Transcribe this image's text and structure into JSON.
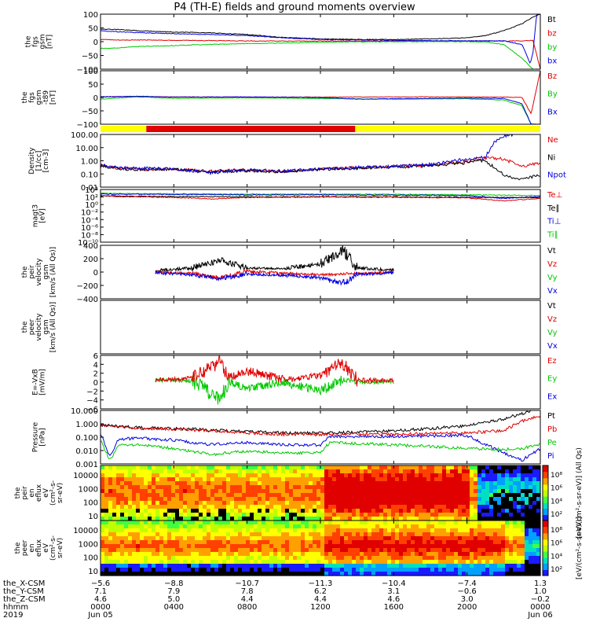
{
  "title": "P4 (TH-E) fields and ground moments overview",
  "colors": {
    "black": "#000000",
    "red": "#e00000",
    "green": "#00c800",
    "blue": "#0000e0",
    "yellow": "#ffff00",
    "bar_red": "#e00000"
  },
  "chart_data": [
    {
      "type": "line",
      "panel": "fgs_gsm",
      "ylabel": [
        "the",
        "fgs",
        "gsm",
        "[nT]"
      ],
      "ylim": [
        -100,
        100
      ],
      "yticks": [
        "100",
        "50",
        "0",
        "−50",
        "−100"
      ],
      "legend": [
        {
          "label": "Bt",
          "color": "#000000"
        },
        {
          "label": "bz",
          "color": "#e00000"
        },
        {
          "label": "by",
          "color": "#00c800"
        },
        {
          "label": "bx",
          "color": "#0000e0"
        }
      ],
      "series": [
        {
          "name": "Bt",
          "x": [
            0,
            1,
            2,
            4,
            6,
            8,
            10,
            12,
            14,
            16,
            18,
            20,
            21,
            22,
            23,
            23.6,
            24
          ],
          "values": [
            46,
            44,
            40,
            35,
            32,
            26,
            15,
            10,
            8,
            8,
            10,
            14,
            22,
            40,
            65,
            90,
            100
          ]
        },
        {
          "name": "bz",
          "x": [
            0,
            1,
            2,
            4,
            6,
            8,
            10,
            12,
            16,
            20,
            22,
            23,
            23.6,
            24
          ],
          "values": [
            8,
            6,
            6,
            5,
            4,
            3,
            2,
            2,
            2,
            2,
            2,
            3,
            5,
            -100
          ]
        },
        {
          "name": "by",
          "x": [
            0,
            1,
            2,
            4,
            6,
            8,
            10,
            12,
            16,
            20,
            21,
            22,
            23,
            23.6,
            24
          ],
          "values": [
            -25,
            -22,
            -18,
            -14,
            -10,
            -7,
            -5,
            -2,
            0,
            0,
            -1,
            -10,
            -60,
            -100,
            -100
          ]
        },
        {
          "name": "bx",
          "x": [
            0,
            1,
            2,
            4,
            6,
            8,
            10,
            12,
            16,
            20,
            22,
            23,
            23.2,
            23.45,
            23.6,
            23.8,
            24
          ],
          "values": [
            40,
            36,
            33,
            29,
            26,
            22,
            14,
            8,
            5,
            3,
            3,
            -10,
            -40,
            -80,
            -40,
            100,
            100
          ]
        }
      ]
    },
    {
      "type": "line",
      "panel": "fgs_gsm_detrended",
      "ylabel": [
        "the",
        "fgs",
        "gsm",
        "-t89",
        "[nT]"
      ],
      "ylim": [
        -130,
        130
      ],
      "yticks": [
        "100",
        "50",
        "0",
        "−50",
        "−100"
      ],
      "legend": [
        {
          "label": "Bz",
          "color": "#e00000"
        },
        {
          "label": "By",
          "color": "#00c800"
        },
        {
          "label": "Bx",
          "color": "#0000e0"
        }
      ],
      "series": [
        {
          "name": "Bz",
          "x": [
            0,
            2,
            4,
            8,
            12,
            16,
            20,
            22,
            23,
            23.5,
            24
          ],
          "values": [
            2,
            5,
            3,
            2,
            2,
            3,
            3,
            2,
            0,
            -80,
            130
          ]
        },
        {
          "name": "By",
          "x": [
            0,
            2,
            4,
            8,
            12,
            16,
            20,
            22,
            23,
            23.5,
            24
          ],
          "values": [
            -8,
            3,
            -4,
            -2,
            -5,
            -8,
            -6,
            -12,
            -40,
            -130,
            -130
          ]
        },
        {
          "name": "Bx",
          "x": [
            0,
            2,
            4,
            8,
            12,
            14,
            16,
            20,
            22,
            23,
            23.5,
            24
          ],
          "values": [
            4,
            6,
            2,
            3,
            0,
            -8,
            -6,
            -3,
            -5,
            -30,
            -130,
            -130
          ]
        }
      ]
    },
    {
      "type": "line",
      "panel": "density",
      "ylabel": [
        "Density",
        "[1/cc]",
        "[cm-3]"
      ],
      "ylim": [
        0.01,
        200
      ],
      "yticks": [
        "100.00",
        "10.00",
        "1.00",
        "0.10",
        "0.01"
      ],
      "legend": [
        {
          "label": "Ne",
          "color": "#e00000"
        },
        {
          "label": "Ni",
          "color": "#000000"
        },
        {
          "label": "Npot",
          "color": "#0000e0"
        }
      ],
      "series": [
        {
          "name": "Ne",
          "x": [
            0,
            1,
            2,
            4,
            6,
            8,
            10,
            12,
            14,
            16,
            18,
            20,
            21,
            22,
            23,
            24
          ],
          "values": [
            0.6,
            0.35,
            0.3,
            0.3,
            0.2,
            0.25,
            0.2,
            0.3,
            0.4,
            0.5,
            0.6,
            1.2,
            2.5,
            2,
            0.5,
            1
          ]
        },
        {
          "name": "Ni",
          "x": [
            0,
            1,
            2,
            4,
            6,
            8,
            10,
            12,
            14,
            16,
            18,
            20,
            21,
            22,
            23,
            24
          ],
          "values": [
            0.5,
            0.3,
            0.28,
            0.28,
            0.18,
            0.22,
            0.18,
            0.28,
            0.35,
            0.45,
            0.55,
            1,
            1.5,
            0.1,
            0.04,
            0.1
          ]
        },
        {
          "name": "Npot",
          "x": [
            0,
            1,
            2,
            4,
            6,
            8,
            10,
            12,
            14,
            16,
            18,
            20,
            21,
            21.5,
            22,
            22.5
          ],
          "values": [
            0.7,
            0.4,
            0.35,
            0.3,
            0.15,
            0.25,
            0.2,
            0.3,
            0.4,
            0.5,
            0.7,
            2,
            3,
            50,
            150,
            200
          ]
        }
      ]
    },
    {
      "type": "line",
      "panel": "magt3",
      "ylabel": [
        "magt3",
        "[eV]"
      ],
      "ylim": [
        1e-10,
        100000
      ],
      "yticks": [
        "10⁴",
        "10²",
        "10⁰",
        "10⁻²",
        "10⁻⁴",
        "10⁻⁶",
        "10⁻⁸",
        "10⁻¹⁰"
      ],
      "legend": [
        {
          "label": "Te⊥",
          "color": "#e00000"
        },
        {
          "label": "Te∥",
          "color": "#000000"
        },
        {
          "label": "Ti⊥",
          "color": "#0000e0"
        },
        {
          "label": "Ti∥",
          "color": "#00c800"
        }
      ],
      "series": [
        {
          "name": "Ti∥",
          "x": [
            0,
            4,
            8,
            12,
            16,
            20,
            24
          ],
          "values": [
            8000,
            6000,
            5000,
            5000,
            4000,
            3000,
            2000
          ]
        },
        {
          "name": "Ti⊥",
          "x": [
            0,
            4,
            8,
            12,
            16,
            20,
            22,
            24
          ],
          "values": [
            5000,
            4000,
            3000,
            3000,
            2500,
            2000,
            300,
            1000
          ]
        },
        {
          "name": "Te∥",
          "x": [
            0,
            4,
            8,
            12,
            16,
            20,
            24
          ],
          "values": [
            1500,
            1000,
            800,
            900,
            800,
            600,
            500
          ]
        },
        {
          "name": "Te⊥",
          "x": [
            0,
            1,
            4,
            6,
            8,
            12,
            16,
            20,
            22,
            24
          ],
          "values": [
            2000,
            900,
            600,
            200,
            500,
            700,
            600,
            400,
            60,
            300
          ]
        }
      ]
    },
    {
      "type": "line",
      "panel": "peir_velocity",
      "ylabel": [
        "the",
        "peir",
        "velocity",
        "gsm",
        "[km/s (All Qs)]"
      ],
      "ylim": [
        -400,
        400
      ],
      "yticks": [
        "400",
        "200",
        "0",
        "−200",
        "−400"
      ],
      "legend": [
        {
          "label": "Vt",
          "color": "#000000"
        },
        {
          "label": "Vz",
          "color": "#e00000"
        },
        {
          "label": "Vy",
          "color": "#00c800"
        },
        {
          "label": "Vx",
          "color": "#0000e0"
        }
      ],
      "series": [
        {
          "name": "Vt",
          "x": [
            3,
            5,
            6.5,
            8,
            10,
            12,
            13.2,
            14,
            16
          ],
          "values": [
            20,
            60,
            180,
            60,
            50,
            120,
            330,
            60,
            30
          ]
        },
        {
          "name": "Vz",
          "x": [
            3,
            5,
            6.5,
            8,
            10,
            12,
            14,
            16
          ],
          "values": [
            0,
            -20,
            -80,
            10,
            -20,
            -40,
            -20,
            0
          ]
        },
        {
          "name": "Vx",
          "x": [
            3,
            5,
            6.5,
            8,
            10,
            12,
            13.2,
            14,
            16
          ],
          "values": [
            -10,
            -40,
            -100,
            -30,
            -50,
            -90,
            -170,
            -40,
            -10
          ]
        }
      ]
    },
    {
      "type": "line",
      "panel": "peer_velocity",
      "ylabel": [
        "the",
        "peer",
        "velocity",
        "gsm",
        "[km/s (All Qs)]"
      ],
      "ylim": [
        -400,
        400
      ],
      "yticks": [],
      "legend": [
        {
          "label": "Vt",
          "color": "#000000"
        },
        {
          "label": "Vz",
          "color": "#e00000"
        },
        {
          "label": "Vy",
          "color": "#00c800"
        },
        {
          "label": "Vx",
          "color": "#0000e0"
        }
      ],
      "series": []
    },
    {
      "type": "line",
      "panel": "efield",
      "ylabel": [
        "E=-VxB",
        "[mV/m]"
      ],
      "ylim": [
        -6,
        6
      ],
      "yticks": [
        "6",
        "4",
        "2",
        "0",
        "−2",
        "−4",
        "−6"
      ],
      "legend": [
        {
          "label": "Ez",
          "color": "#e00000"
        },
        {
          "label": "Ey",
          "color": "#00c800"
        },
        {
          "label": "Ex",
          "color": "#0000e0"
        }
      ],
      "series": [
        {
          "name": "Ey",
          "x": [
            3,
            5,
            6.5,
            7,
            8,
            10,
            12,
            13.2,
            14,
            16
          ],
          "values": [
            0.5,
            0.3,
            -4,
            0.2,
            -1.5,
            0,
            -2,
            0.5,
            0,
            0
          ]
        },
        {
          "name": "Ez",
          "x": [
            3,
            5,
            6.5,
            7,
            8,
            10,
            12,
            13.2,
            14,
            16
          ],
          "values": [
            0.5,
            0.8,
            4.5,
            1,
            2.5,
            0.5,
            1.5,
            4.5,
            0.5,
            0.3
          ]
        }
      ]
    },
    {
      "type": "line",
      "panel": "pressure",
      "ylabel": [
        "Pressure",
        "[nPa]"
      ],
      "ylim": [
        0.0005,
        15
      ],
      "yticks": [
        "10.000",
        "1.000",
        "0.100",
        "0.010",
        "0.001"
      ],
      "legend": [
        {
          "label": "Pt",
          "color": "#000000"
        },
        {
          "label": "Pb",
          "color": "#e00000"
        },
        {
          "label": "Pe",
          "color": "#00c800"
        },
        {
          "label": "Pi",
          "color": "#0000e0"
        }
      ],
      "series": [
        {
          "name": "Pt",
          "x": [
            0,
            1,
            2,
            4,
            6,
            8,
            10,
            12,
            14,
            16,
            18,
            20,
            21,
            22,
            23,
            23.5
          ],
          "values": [
            0.9,
            0.7,
            0.55,
            0.45,
            0.35,
            0.25,
            0.2,
            0.2,
            0.22,
            0.3,
            0.45,
            0.8,
            1.5,
            3,
            8,
            15
          ]
        },
        {
          "name": "Pb",
          "x": [
            0,
            2,
            4,
            6,
            8,
            10,
            12,
            16,
            20,
            22,
            23,
            24
          ],
          "values": [
            0.8,
            0.5,
            0.4,
            0.3,
            0.2,
            0.15,
            0.15,
            0.15,
            0.2,
            0.3,
            2,
            5
          ]
        },
        {
          "name": "Pi",
          "x": [
            0,
            0.5,
            1,
            2,
            4,
            6,
            8,
            10,
            12,
            12.5,
            16,
            20,
            22,
            23,
            24
          ],
          "values": [
            0.2,
            0.002,
            0.06,
            0.07,
            0.05,
            0.02,
            0.03,
            0.02,
            0.02,
            0.1,
            0.1,
            0.12,
            0.004,
            0.001,
            0.01
          ]
        },
        {
          "name": "Pe",
          "x": [
            0,
            0.5,
            1,
            2,
            4,
            6,
            8,
            10,
            12,
            12.5,
            16,
            20,
            22,
            23,
            24
          ],
          "values": [
            0.05,
            0.001,
            0.02,
            0.02,
            0.01,
            0.003,
            0.006,
            0.004,
            0.004,
            0.03,
            0.02,
            0.01,
            0.008,
            0.01,
            0.02
          ]
        }
      ]
    },
    {
      "type": "heatmap",
      "panel": "peir_eflux",
      "ylabel": [
        "the",
        "peir",
        "en",
        "eflux",
        "eV",
        "(cm²-s-",
        "sr-eV)"
      ],
      "yticks": [
        "10000",
        "1000",
        "100",
        "10"
      ],
      "colorbar_ticks": [
        "10⁸",
        "10⁶",
        "10⁴",
        "10²"
      ],
      "colorbar_label": "[eV/(cm²-s-sr-eV)] (All Qs)"
    },
    {
      "type": "heatmap",
      "panel": "peer_eflux",
      "ylabel": [
        "the",
        "peer",
        "en",
        "eflux",
        "eV",
        "(cm²-s-",
        "sr-eV)"
      ],
      "yticks": [
        "10000",
        "1000",
        "100",
        "10"
      ],
      "colorbar_ticks": [
        "10⁸",
        "10⁶",
        "10⁴",
        "10²"
      ],
      "colorbar_label": "[eV/(cm²-s-sr-eV)]"
    }
  ],
  "quality_bar": [
    {
      "from": 0,
      "to": 2.5,
      "color": "#ffff00"
    },
    {
      "from": 2.5,
      "to": 13.9,
      "color": "#e00000"
    },
    {
      "from": 13.9,
      "to": 24,
      "color": "#ffff00"
    }
  ],
  "xaxis": {
    "rows": [
      {
        "label": "the_X-CSM",
        "values": [
          "−5.6",
          "−8.8",
          "−10.7",
          "−11.3",
          "−10.4",
          "−7.4",
          "1.3"
        ]
      },
      {
        "label": "the_Y-CSM",
        "values": [
          "7.1",
          "7.9",
          "7.8",
          "6.2",
          "3.1",
          "−0.6",
          "1.0"
        ]
      },
      {
        "label": "the_Z-CSM",
        "values": [
          "4.6",
          "5.0",
          "4.4",
          "4.4",
          "4.6",
          "3.0",
          "−0.2"
        ]
      },
      {
        "label": "hhmm",
        "values": [
          "0000",
          "0400",
          "0800",
          "1200",
          "1600",
          "2000",
          "0000"
        ]
      },
      {
        "label": "2019",
        "values": [
          "Jun 05",
          "",
          "",
          "",
          "",
          "",
          "Jun 06"
        ]
      }
    ],
    "hours": [
      0,
      4,
      8,
      12,
      16,
      20,
      24
    ]
  }
}
